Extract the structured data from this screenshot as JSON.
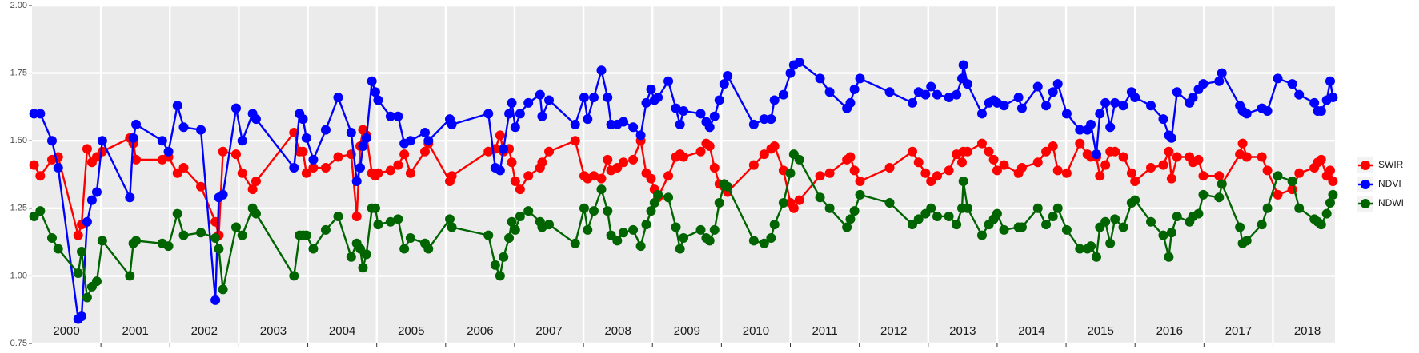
{
  "chart_data": {
    "type": "line",
    "x": [
      2000.03,
      2000.12,
      2000.29,
      2000.38,
      2000.67,
      2000.72,
      2000.8,
      2000.87,
      2000.94,
      2001.02,
      2001.42,
      2001.47,
      2001.51,
      2001.89,
      2001.98,
      2002.11,
      2002.2,
      2002.45,
      2002.66,
      2002.71,
      2002.77,
      2002.96,
      2003.05,
      2003.2,
      2003.25,
      2003.8,
      2003.88,
      2003.93,
      2003.98,
      2004.08,
      2004.26,
      2004.44,
      2004.63,
      2004.71,
      2004.76,
      2004.8,
      2004.85,
      2004.93,
      2004.98,
      2005.02,
      2005.2,
      2005.31,
      2005.4,
      2005.49,
      2005.7,
      2005.75,
      2006.06,
      2006.09,
      2006.62,
      2006.72,
      2006.79,
      2006.84,
      2006.92,
      2006.96,
      2007.01,
      2007.08,
      2007.2,
      2007.37,
      2007.4,
      2007.5,
      2007.88,
      2008.01,
      2008.06,
      2008.15,
      2008.26,
      2008.35,
      2008.4,
      2008.49,
      2008.58,
      2008.72,
      2008.83,
      2008.91,
      2008.98,
      2009.03,
      2009.08,
      2009.23,
      2009.34,
      2009.4,
      2009.45,
      2009.7,
      2009.78,
      2009.83,
      2009.9,
      2009.97,
      2010.04,
      2010.09,
      2010.47,
      2010.62,
      2010.72,
      2010.77,
      2010.9,
      2011.0,
      2011.05,
      2011.13,
      2011.43,
      2011.57,
      2011.82,
      2011.87,
      2011.93,
      2012.01,
      2012.44,
      2012.77,
      2012.86,
      2012.96,
      2013.04,
      2013.13,
      2013.3,
      2013.41,
      2013.49,
      2013.51,
      2013.57,
      2013.78,
      2013.88,
      2013.95,
      2014.0,
      2014.1,
      2014.31,
      2014.36,
      2014.59,
      2014.71,
      2014.81,
      2014.88,
      2015.01,
      2015.2,
      2015.31,
      2015.36,
      2015.44,
      2015.49,
      2015.57,
      2015.64,
      2015.71,
      2015.83,
      2015.95,
      2016.0,
      2016.23,
      2016.41,
      2016.49,
      2016.53,
      2016.61,
      2016.79,
      2016.84,
      2016.92,
      2016.99,
      2017.22,
      2017.26,
      2017.52,
      2017.56,
      2017.62,
      2017.84,
      2017.92,
      2018.07,
      2018.28,
      2018.38,
      2018.6,
      2018.65,
      2018.7,
      2018.78,
      2018.83,
      2018.87
    ],
    "series": [
      {
        "name": "SWIR",
        "color": "#ff0000",
        "values": [
          1.41,
          1.37,
          1.43,
          1.44,
          1.15,
          1.19,
          1.47,
          1.42,
          1.44,
          1.46,
          1.51,
          1.49,
          1.43,
          1.43,
          1.44,
          1.38,
          1.4,
          1.33,
          1.2,
          1.15,
          1.46,
          1.45,
          1.38,
          1.32,
          1.35,
          1.53,
          1.46,
          1.46,
          1.38,
          1.4,
          1.4,
          1.44,
          1.45,
          1.22,
          1.48,
          1.54,
          1.52,
          1.38,
          1.37,
          1.38,
          1.39,
          1.41,
          1.45,
          1.38,
          1.46,
          1.49,
          1.35,
          1.37,
          1.46,
          1.47,
          1.52,
          1.46,
          1.47,
          1.42,
          1.35,
          1.32,
          1.37,
          1.4,
          1.42,
          1.46,
          1.5,
          1.37,
          1.36,
          1.37,
          1.36,
          1.43,
          1.39,
          1.4,
          1.42,
          1.43,
          1.5,
          1.38,
          1.36,
          1.32,
          1.29,
          1.37,
          1.44,
          1.45,
          1.44,
          1.46,
          1.49,
          1.48,
          1.4,
          1.34,
          1.33,
          1.31,
          1.41,
          1.45,
          1.47,
          1.48,
          1.39,
          1.27,
          1.25,
          1.28,
          1.37,
          1.38,
          1.43,
          1.44,
          1.39,
          1.35,
          1.4,
          1.46,
          1.42,
          1.38,
          1.35,
          1.37,
          1.39,
          1.45,
          1.42,
          1.46,
          1.46,
          1.49,
          1.46,
          1.43,
          1.39,
          1.41,
          1.38,
          1.4,
          1.42,
          1.46,
          1.48,
          1.39,
          1.38,
          1.49,
          1.45,
          1.44,
          1.44,
          1.37,
          1.41,
          1.46,
          1.46,
          1.44,
          1.38,
          1.35,
          1.4,
          1.41,
          1.46,
          1.36,
          1.44,
          1.44,
          1.42,
          1.43,
          1.37,
          1.37,
          1.34,
          1.45,
          1.49,
          1.44,
          1.44,
          1.39,
          1.3,
          1.32,
          1.38,
          1.4,
          1.42,
          1.43,
          1.37,
          1.39,
          1.35
        ]
      },
      {
        "name": "NDVI",
        "color": "#0000ff",
        "values": [
          1.6,
          1.6,
          1.5,
          1.4,
          0.84,
          0.85,
          1.2,
          1.28,
          1.31,
          1.5,
          1.29,
          1.51,
          1.56,
          1.5,
          1.46,
          1.63,
          1.55,
          1.54,
          0.91,
          1.29,
          1.3,
          1.62,
          1.5,
          1.6,
          1.58,
          1.4,
          1.6,
          1.58,
          1.51,
          1.43,
          1.54,
          1.66,
          1.53,
          1.35,
          1.4,
          1.48,
          1.51,
          1.72,
          1.68,
          1.65,
          1.59,
          1.59,
          1.49,
          1.5,
          1.53,
          1.5,
          1.58,
          1.56,
          1.6,
          1.4,
          1.39,
          1.47,
          1.6,
          1.64,
          1.55,
          1.6,
          1.64,
          1.67,
          1.59,
          1.65,
          1.56,
          1.66,
          1.58,
          1.66,
          1.76,
          1.66,
          1.56,
          1.56,
          1.57,
          1.55,
          1.52,
          1.64,
          1.69,
          1.65,
          1.66,
          1.72,
          1.62,
          1.56,
          1.61,
          1.6,
          1.57,
          1.55,
          1.59,
          1.65,
          1.71,
          1.74,
          1.56,
          1.58,
          1.58,
          1.65,
          1.67,
          1.75,
          1.78,
          1.79,
          1.73,
          1.68,
          1.62,
          1.64,
          1.69,
          1.73,
          1.68,
          1.64,
          1.68,
          1.67,
          1.7,
          1.67,
          1.66,
          1.67,
          1.73,
          1.78,
          1.71,
          1.6,
          1.64,
          1.65,
          1.64,
          1.63,
          1.66,
          1.62,
          1.7,
          1.63,
          1.68,
          1.71,
          1.6,
          1.54,
          1.54,
          1.56,
          1.45,
          1.6,
          1.64,
          1.55,
          1.64,
          1.63,
          1.68,
          1.66,
          1.63,
          1.58,
          1.52,
          1.51,
          1.68,
          1.64,
          1.66,
          1.69,
          1.71,
          1.72,
          1.75,
          1.63,
          1.61,
          1.6,
          1.62,
          1.61,
          1.73,
          1.71,
          1.67,
          1.64,
          1.61,
          1.61,
          1.65,
          1.72,
          1.66
        ]
      },
      {
        "name": "NDWI",
        "color": "#006400",
        "values": [
          1.22,
          1.24,
          1.14,
          1.1,
          1.01,
          1.09,
          0.92,
          0.96,
          0.98,
          1.13,
          1.0,
          1.12,
          1.13,
          1.12,
          1.11,
          1.23,
          1.15,
          1.16,
          1.14,
          1.1,
          0.95,
          1.18,
          1.15,
          1.25,
          1.23,
          1.0,
          1.15,
          1.15,
          1.15,
          1.1,
          1.17,
          1.22,
          1.07,
          1.12,
          1.1,
          1.03,
          1.08,
          1.25,
          1.25,
          1.19,
          1.2,
          1.21,
          1.1,
          1.14,
          1.12,
          1.1,
          1.21,
          1.18,
          1.15,
          1.04,
          1.0,
          1.07,
          1.14,
          1.2,
          1.17,
          1.22,
          1.24,
          1.2,
          1.18,
          1.19,
          1.12,
          1.25,
          1.17,
          1.24,
          1.32,
          1.24,
          1.15,
          1.13,
          1.16,
          1.17,
          1.11,
          1.19,
          1.24,
          1.27,
          1.3,
          1.29,
          1.18,
          1.1,
          1.14,
          1.17,
          1.14,
          1.13,
          1.17,
          1.27,
          1.34,
          1.33,
          1.13,
          1.12,
          1.14,
          1.19,
          1.27,
          1.38,
          1.45,
          1.43,
          1.29,
          1.25,
          1.18,
          1.21,
          1.24,
          1.3,
          1.27,
          1.19,
          1.21,
          1.23,
          1.25,
          1.22,
          1.22,
          1.19,
          1.25,
          1.35,
          1.25,
          1.15,
          1.19,
          1.21,
          1.23,
          1.17,
          1.18,
          1.18,
          1.25,
          1.19,
          1.22,
          1.25,
          1.17,
          1.1,
          1.1,
          1.11,
          1.07,
          1.18,
          1.2,
          1.12,
          1.21,
          1.18,
          1.27,
          1.28,
          1.2,
          1.15,
          1.07,
          1.16,
          1.22,
          1.2,
          1.22,
          1.23,
          1.3,
          1.29,
          1.34,
          1.18,
          1.12,
          1.13,
          1.19,
          1.25,
          1.37,
          1.35,
          1.25,
          1.21,
          1.2,
          1.19,
          1.23,
          1.27,
          1.3
        ]
      }
    ],
    "xlim": [
      2000,
      2018.9
    ],
    "xticks": [
      {
        "value": 2000.5,
        "label": "2000"
      },
      {
        "value": 2001.5,
        "label": "2001"
      },
      {
        "value": 2002.5,
        "label": "2002"
      },
      {
        "value": 2003.5,
        "label": "2003"
      },
      {
        "value": 2004.5,
        "label": "2004"
      },
      {
        "value": 2005.5,
        "label": "2005"
      },
      {
        "value": 2006.5,
        "label": "2006"
      },
      {
        "value": 2007.5,
        "label": "2007"
      },
      {
        "value": 2008.5,
        "label": "2008"
      },
      {
        "value": 2009.5,
        "label": "2009"
      },
      {
        "value": 2010.5,
        "label": "2010"
      },
      {
        "value": 2011.5,
        "label": "2011"
      },
      {
        "value": 2012.5,
        "label": "2012"
      },
      {
        "value": 2013.5,
        "label": "2013"
      },
      {
        "value": 2014.5,
        "label": "2014"
      },
      {
        "value": 2015.5,
        "label": "2015"
      },
      {
        "value": 2016.5,
        "label": "2016"
      },
      {
        "value": 2017.5,
        "label": "2017"
      },
      {
        "value": 2018.5,
        "label": "2018"
      }
    ],
    "x_boundaries": [
      2001,
      2002,
      2003,
      2004,
      2005,
      2006,
      2007,
      2008,
      2009,
      2010,
      2011,
      2012,
      2013,
      2014,
      2015,
      2016,
      2017,
      2018
    ],
    "ylim": [
      0.75,
      2.0
    ],
    "yticks": [
      0.75,
      {
        "value": 1,
        "label": "1.00"
      },
      1.25,
      {
        "value": 1.5,
        "label": "1.50"
      },
      1.75,
      {
        "value": 2,
        "label": "2.00"
      }
    ],
    "grid": true,
    "legend": "right"
  }
}
